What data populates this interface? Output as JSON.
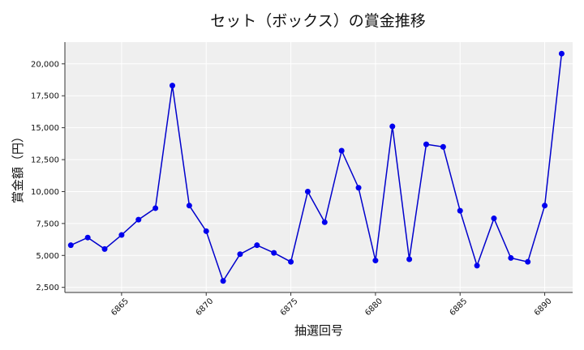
{
  "chart_data": {
    "type": "line",
    "title": "セット（ボックス）の賞金推移",
    "xlabel": "抽選回号",
    "ylabel": "賞金額（円）",
    "x": [
      6862,
      6863,
      6864,
      6865,
      6866,
      6867,
      6868,
      6869,
      6870,
      6871,
      6872,
      6873,
      6874,
      6875,
      6876,
      6877,
      6878,
      6879,
      6880,
      6881,
      6882,
      6883,
      6884,
      6885,
      6886,
      6887,
      6888,
      6889,
      6890,
      6891
    ],
    "values": [
      5800,
      6400,
      5500,
      6600,
      7800,
      8700,
      18300,
      8900,
      6900,
      3000,
      5100,
      5800,
      5200,
      4500,
      10000,
      7600,
      13200,
      10300,
      4600,
      15100,
      4700,
      13700,
      13500,
      8500,
      4200,
      7900,
      4800,
      4500,
      8900,
      20800
    ],
    "xticks": [
      6865,
      6870,
      6875,
      6880,
      6885,
      6890
    ],
    "xtick_labels": [
      "6865",
      "6870",
      "6875",
      "6880",
      "6885",
      "6890"
    ],
    "yticks": [
      2500,
      5000,
      7500,
      10000,
      12500,
      15000,
      17500,
      20000
    ],
    "ytick_labels": [
      "2,500",
      "5,000",
      "7,500",
      "10,000",
      "12,500",
      "15,000",
      "17,500",
      "20,000"
    ],
    "xlim": [
      6861.65,
      6891.65
    ],
    "ylim": [
      2100,
      21700
    ],
    "grid": true,
    "colors": {
      "line": "#0000cc",
      "marker": "#0000ee",
      "plot_bg": "#efefef",
      "grid": "#ffffff"
    }
  }
}
